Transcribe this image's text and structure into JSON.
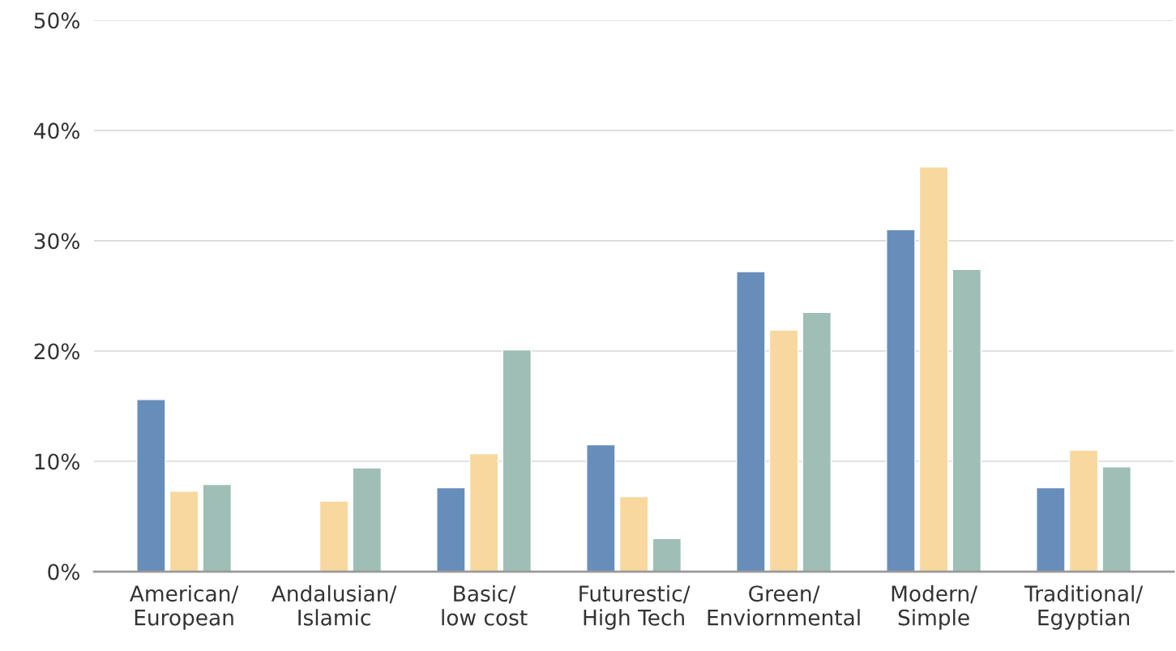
{
  "chart_data": {
    "type": "bar",
    "categories": [
      "American/\nEuropean",
      "Andalusian/\nIslamic",
      "Basic/\nlow cost",
      "Futurestic/\nHigh Tech",
      "Green/\nEnviornmental",
      "Modern/\nSimple",
      "Traditional/\nEgyptian"
    ],
    "series": [
      {
        "color": "#678dba",
        "values": [
          15.6,
          null,
          7.6,
          11.5,
          27.2,
          31.0,
          7.6
        ]
      },
      {
        "color": "#f8d89e",
        "values": [
          7.3,
          6.4,
          10.7,
          6.8,
          21.9,
          36.7,
          11.0
        ]
      },
      {
        "color": "#9fbfb6",
        "values": [
          7.9,
          9.4,
          20.1,
          3.0,
          23.5,
          27.4,
          9.5
        ]
      }
    ],
    "ylim": [
      0,
      50
    ],
    "yticks": [
      {
        "value": 0,
        "label": "0%"
      },
      {
        "value": 10,
        "label": "10%"
      },
      {
        "value": 20,
        "label": "20%"
      },
      {
        "value": 30,
        "label": "30%"
      },
      {
        "value": 40,
        "label": "40%"
      },
      {
        "value": 50,
        "label": "50%"
      }
    ],
    "grid": "y",
    "legend": false
  }
}
